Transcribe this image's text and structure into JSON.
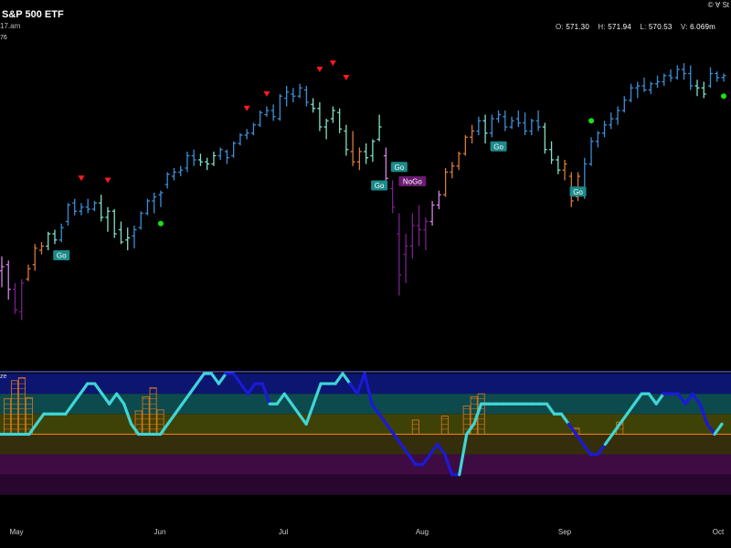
{
  "header": {
    "title": "S&P 500 ETF",
    "subtitle": "17.am",
    "copyright": "© Ɐ St",
    "price_label": "76",
    "oscillator_label": "ze",
    "ohlc": [
      {
        "key": "O:",
        "value": "571.30"
      },
      {
        "key": "H:",
        "value": "571.94"
      },
      {
        "key": "L:",
        "value": "570.53"
      },
      {
        "key": "V:",
        "value": "6.069m"
      }
    ]
  },
  "colors": {
    "background": "#000000",
    "strong_go": "#3a8fd8",
    "weak_go": "#82e0c8",
    "go_fish": "#d77a3c",
    "weak_nogo": "#d084e0",
    "strong_nogo": "#7a1f8c",
    "oscillator_line": "#3fd6d6",
    "oscillator_dark": "#1a1ad8",
    "zero_line": "#e07a1c",
    "divider": "#6a78ff"
  },
  "chart_data": [
    {
      "type": "ohlc",
      "title": "S&P 500 ETF",
      "x_ticks": [
        "May",
        "Jun",
        "Jul",
        "Aug",
        "Sep",
        "Oct"
      ],
      "ylim": [
        498,
        578
      ],
      "bars": [
        {
          "o": 521.0,
          "h": 524.5,
          "l": 517.0,
          "c": 522.0,
          "k": "wn"
        },
        {
          "o": 522.5,
          "h": 523.5,
          "l": 514.0,
          "c": 516.5,
          "k": "wn"
        },
        {
          "o": 516.5,
          "h": 518.0,
          "l": 510.5,
          "c": 511.5,
          "k": "sn"
        },
        {
          "o": 511.0,
          "h": 519.0,
          "l": 509.0,
          "c": 518.0,
          "k": "sn"
        },
        {
          "o": 519.0,
          "h": 522.5,
          "l": 518.5,
          "c": 521.5,
          "k": "gf"
        },
        {
          "o": 522.5,
          "h": 527.5,
          "l": 521.0,
          "c": 526.5,
          "k": "gf"
        },
        {
          "o": 526.0,
          "h": 528.0,
          "l": 525.0,
          "c": 527.0,
          "k": "gf"
        },
        {
          "o": 527.0,
          "h": 530.5,
          "l": 526.0,
          "c": 530.0,
          "k": "wg"
        },
        {
          "o": 530.0,
          "h": 531.0,
          "l": 527.5,
          "c": 528.5,
          "k": "wg"
        },
        {
          "o": 528.5,
          "h": 532.5,
          "l": 528.0,
          "c": 531.5,
          "k": "sg"
        },
        {
          "o": 533.0,
          "h": 537.5,
          "l": 532.0,
          "c": 537.0,
          "k": "sg"
        },
        {
          "o": 537.5,
          "h": 538.5,
          "l": 534.5,
          "c": 535.5,
          "k": "sg"
        },
        {
          "o": 535.5,
          "h": 537.5,
          "l": 534.5,
          "c": 536.5,
          "k": "sg"
        },
        {
          "o": 536.5,
          "h": 538.5,
          "l": 535.0,
          "c": 536.0,
          "k": "sg"
        },
        {
          "o": 536.0,
          "h": 538.0,
          "l": 535.5,
          "c": 537.5,
          "k": "sg"
        },
        {
          "o": 537.5,
          "h": 539.5,
          "l": 533.0,
          "c": 534.0,
          "k": "wg"
        },
        {
          "o": 534.0,
          "h": 536.5,
          "l": 530.5,
          "c": 535.5,
          "k": "wg"
        },
        {
          "o": 535.5,
          "h": 536.0,
          "l": 529.0,
          "c": 530.0,
          "k": "wg"
        },
        {
          "o": 531.0,
          "h": 533.0,
          "l": 527.5,
          "c": 528.0,
          "k": "wg"
        },
        {
          "o": 528.5,
          "h": 531.5,
          "l": 526.0,
          "c": 529.0,
          "k": "wg"
        },
        {
          "o": 529.5,
          "h": 532.0,
          "l": 526.5,
          "c": 531.0,
          "k": "sg"
        },
        {
          "o": 531.5,
          "h": 535.5,
          "l": 531.0,
          "c": 535.0,
          "k": "sg"
        },
        {
          "o": 535.0,
          "h": 538.5,
          "l": 534.5,
          "c": 538.0,
          "k": "sg"
        },
        {
          "o": 538.0,
          "h": 540.0,
          "l": 535.0,
          "c": 539.0,
          "k": "sg"
        },
        {
          "o": 539.5,
          "h": 540.5,
          "l": 536.5,
          "c": 540.0,
          "k": "sg"
        },
        {
          "o": 542.0,
          "h": 545.0,
          "l": 541.0,
          "c": 544.5,
          "k": "sg"
        },
        {
          "o": 544.0,
          "h": 546.0,
          "l": 543.0,
          "c": 545.0,
          "k": "sg"
        },
        {
          "o": 545.0,
          "h": 546.5,
          "l": 544.0,
          "c": 545.5,
          "k": "sg"
        },
        {
          "o": 546.0,
          "h": 550.0,
          "l": 545.0,
          "c": 549.0,
          "k": "sg"
        },
        {
          "o": 549.0,
          "h": 550.5,
          "l": 546.5,
          "c": 548.0,
          "k": "sg"
        },
        {
          "o": 548.0,
          "h": 549.5,
          "l": 546.5,
          "c": 547.5,
          "k": "wg"
        },
        {
          "o": 547.5,
          "h": 548.5,
          "l": 545.5,
          "c": 547.0,
          "k": "wg"
        },
        {
          "o": 547.0,
          "h": 550.0,
          "l": 546.5,
          "c": 549.0,
          "k": "wg"
        },
        {
          "o": 549.0,
          "h": 551.0,
          "l": 548.0,
          "c": 550.5,
          "k": "sg"
        },
        {
          "o": 550.0,
          "h": 550.5,
          "l": 547.0,
          "c": 548.5,
          "k": "sg"
        },
        {
          "o": 549.0,
          "h": 552.5,
          "l": 548.5,
          "c": 552.0,
          "k": "sg"
        },
        {
          "o": 552.0,
          "h": 554.5,
          "l": 551.5,
          "c": 554.0,
          "k": "sg"
        },
        {
          "o": 554.0,
          "h": 555.5,
          "l": 553.0,
          "c": 554.5,
          "k": "sg"
        },
        {
          "o": 554.5,
          "h": 557.0,
          "l": 554.0,
          "c": 556.5,
          "k": "sg"
        },
        {
          "o": 556.5,
          "h": 560.0,
          "l": 556.0,
          "c": 559.5,
          "k": "sg"
        },
        {
          "o": 559.0,
          "h": 561.0,
          "l": 558.5,
          "c": 560.0,
          "k": "sg"
        },
        {
          "o": 560.0,
          "h": 561.5,
          "l": 557.5,
          "c": 558.5,
          "k": "sg"
        },
        {
          "o": 558.0,
          "h": 564.0,
          "l": 557.5,
          "c": 563.5,
          "k": "sg"
        },
        {
          "o": 563.0,
          "h": 566.0,
          "l": 561.0,
          "c": 564.5,
          "k": "sg"
        },
        {
          "o": 564.0,
          "h": 565.5,
          "l": 562.0,
          "c": 563.5,
          "k": "sg"
        },
        {
          "o": 563.5,
          "h": 566.5,
          "l": 563.0,
          "c": 565.5,
          "k": "sg"
        },
        {
          "o": 565.0,
          "h": 566.0,
          "l": 561.0,
          "c": 562.0,
          "k": "sg"
        },
        {
          "o": 561.5,
          "h": 563.0,
          "l": 559.5,
          "c": 560.5,
          "k": "wg"
        },
        {
          "o": 560.5,
          "h": 562.0,
          "l": 555.0,
          "c": 556.0,
          "k": "wg"
        },
        {
          "o": 556.0,
          "h": 558.0,
          "l": 553.0,
          "c": 557.5,
          "k": "wg"
        },
        {
          "o": 558.0,
          "h": 561.0,
          "l": 557.0,
          "c": 560.0,
          "k": "wg"
        },
        {
          "o": 559.5,
          "h": 560.5,
          "l": 554.5,
          "c": 555.5,
          "k": "wg"
        },
        {
          "o": 555.0,
          "h": 556.5,
          "l": 549.0,
          "c": 550.5,
          "k": "wg"
        },
        {
          "o": 550.0,
          "h": 555.0,
          "l": 546.5,
          "c": 547.5,
          "k": "gf"
        },
        {
          "o": 547.5,
          "h": 551.0,
          "l": 545.5,
          "c": 550.0,
          "k": "gf"
        },
        {
          "o": 550.0,
          "h": 552.0,
          "l": 547.0,
          "c": 548.5,
          "k": "wg"
        },
        {
          "o": 549.0,
          "h": 553.0,
          "l": 547.5,
          "c": 552.5,
          "k": "wg"
        },
        {
          "o": 553.0,
          "h": 559.0,
          "l": 552.5,
          "c": 556.0,
          "k": "wg"
        },
        {
          "o": 549.0,
          "h": 551.0,
          "l": 542.0,
          "c": 543.5,
          "k": "wn"
        },
        {
          "o": 541.0,
          "h": 543.0,
          "l": 535.0,
          "c": 536.5,
          "k": "sn"
        },
        {
          "o": 530.0,
          "h": 535.0,
          "l": 515.0,
          "c": 520.0,
          "k": "sn"
        },
        {
          "o": 525.0,
          "h": 530.0,
          "l": 518.0,
          "c": 527.0,
          "k": "sn"
        },
        {
          "o": 527.0,
          "h": 535.0,
          "l": 524.0,
          "c": 532.0,
          "k": "sn"
        },
        {
          "o": 532.0,
          "h": 537.0,
          "l": 527.0,
          "c": 531.0,
          "k": "sn"
        },
        {
          "o": 531.0,
          "h": 534.0,
          "l": 526.0,
          "c": 533.0,
          "k": "sn"
        },
        {
          "o": 533.0,
          "h": 538.0,
          "l": 532.0,
          "c": 537.0,
          "k": "wn"
        },
        {
          "o": 537.0,
          "h": 540.5,
          "l": 536.0,
          "c": 539.5,
          "k": "wn"
        },
        {
          "o": 539.5,
          "h": 546.0,
          "l": 539.0,
          "c": 545.0,
          "k": "gf"
        },
        {
          "o": 545.0,
          "h": 547.5,
          "l": 543.5,
          "c": 546.5,
          "k": "gf"
        },
        {
          "o": 546.5,
          "h": 550.0,
          "l": 545.5,
          "c": 549.5,
          "k": "gf"
        },
        {
          "o": 549.5,
          "h": 554.0,
          "l": 549.0,
          "c": 553.5,
          "k": "gf"
        },
        {
          "o": 553.5,
          "h": 556.5,
          "l": 552.0,
          "c": 555.0,
          "k": "gf"
        },
        {
          "o": 555.0,
          "h": 558.5,
          "l": 554.0,
          "c": 557.5,
          "k": "sg"
        },
        {
          "o": 557.5,
          "h": 559.0,
          "l": 552.0,
          "c": 554.5,
          "k": "wg"
        },
        {
          "o": 554.5,
          "h": 559.0,
          "l": 553.5,
          "c": 558.0,
          "k": "sg"
        },
        {
          "o": 558.0,
          "h": 560.0,
          "l": 557.0,
          "c": 559.0,
          "k": "sg"
        },
        {
          "o": 558.5,
          "h": 560.0,
          "l": 555.0,
          "c": 556.0,
          "k": "sg"
        },
        {
          "o": 556.0,
          "h": 558.5,
          "l": 555.5,
          "c": 557.5,
          "k": "sg"
        },
        {
          "o": 558.0,
          "h": 560.0,
          "l": 556.0,
          "c": 557.0,
          "k": "sg"
        },
        {
          "o": 557.0,
          "h": 559.5,
          "l": 554.0,
          "c": 555.0,
          "k": "sg"
        },
        {
          "o": 555.0,
          "h": 558.0,
          "l": 554.0,
          "c": 557.5,
          "k": "sg"
        },
        {
          "o": 557.5,
          "h": 560.0,
          "l": 555.0,
          "c": 556.0,
          "k": "sg"
        },
        {
          "o": 556.0,
          "h": 557.0,
          "l": 549.5,
          "c": 550.5,
          "k": "wg"
        },
        {
          "o": 550.5,
          "h": 552.5,
          "l": 547.0,
          "c": 548.0,
          "k": "wg"
        },
        {
          "o": 548.0,
          "h": 549.0,
          "l": 544.5,
          "c": 545.5,
          "k": "wg"
        },
        {
          "o": 545.5,
          "h": 548.0,
          "l": 543.0,
          "c": 547.0,
          "k": "gf"
        },
        {
          "o": 544.0,
          "h": 545.0,
          "l": 536.5,
          "c": 538.0,
          "k": "gf"
        },
        {
          "o": 539.0,
          "h": 545.0,
          "l": 538.0,
          "c": 544.0,
          "k": "gf"
        },
        {
          "o": 541.0,
          "h": 548.5,
          "l": 538.5,
          "c": 547.0,
          "k": "sg"
        },
        {
          "o": 547.0,
          "h": 553.5,
          "l": 546.5,
          "c": 552.5,
          "k": "sg"
        },
        {
          "o": 552.5,
          "h": 555.0,
          "l": 551.0,
          "c": 554.5,
          "k": "sg"
        },
        {
          "o": 554.5,
          "h": 557.5,
          "l": 553.5,
          "c": 556.5,
          "k": "sg"
        },
        {
          "o": 556.5,
          "h": 559.5,
          "l": 555.5,
          "c": 558.0,
          "k": "sg"
        },
        {
          "o": 558.0,
          "h": 561.0,
          "l": 556.5,
          "c": 560.0,
          "k": "sg"
        },
        {
          "o": 560.0,
          "h": 563.5,
          "l": 559.5,
          "c": 562.5,
          "k": "sg"
        },
        {
          "o": 562.5,
          "h": 566.5,
          "l": 562.0,
          "c": 565.5,
          "k": "sg"
        },
        {
          "o": 565.5,
          "h": 567.0,
          "l": 563.0,
          "c": 566.0,
          "k": "sg"
        },
        {
          "o": 566.0,
          "h": 568.0,
          "l": 564.5,
          "c": 565.0,
          "k": "sg"
        },
        {
          "o": 565.0,
          "h": 567.0,
          "l": 564.0,
          "c": 566.5,
          "k": "sg"
        },
        {
          "o": 566.5,
          "h": 568.5,
          "l": 565.5,
          "c": 567.0,
          "k": "sg"
        },
        {
          "o": 567.0,
          "h": 569.0,
          "l": 566.0,
          "c": 568.5,
          "k": "sg"
        },
        {
          "o": 568.5,
          "h": 570.0,
          "l": 567.0,
          "c": 568.0,
          "k": "sg"
        },
        {
          "o": 568.0,
          "h": 571.0,
          "l": 567.5,
          "c": 570.0,
          "k": "sg"
        },
        {
          "o": 570.0,
          "h": 571.5,
          "l": 567.5,
          "c": 569.0,
          "k": "sg"
        },
        {
          "o": 569.0,
          "h": 571.0,
          "l": 565.0,
          "c": 566.0,
          "k": "sg"
        },
        {
          "o": 566.0,
          "h": 567.5,
          "l": 563.5,
          "c": 565.5,
          "k": "wg"
        },
        {
          "o": 565.5,
          "h": 567.0,
          "l": 563.0,
          "c": 564.0,
          "k": "wg"
        },
        {
          "o": 566.0,
          "h": 570.5,
          "l": 565.5,
          "c": 569.0,
          "k": "sg"
        },
        {
          "o": 569.0,
          "h": 569.5,
          "l": 567.0,
          "c": 568.0,
          "k": "sg"
        },
        {
          "o": 568.0,
          "h": 569.0,
          "l": 567.0,
          "c": 568.5,
          "k": "sg"
        }
      ],
      "markers": [
        {
          "type": "triangle-down",
          "bar": 12,
          "price": 543.5
        },
        {
          "type": "triangle-down",
          "bar": 16,
          "price": 543.0
        },
        {
          "type": "dot",
          "bar": 24,
          "price": 532.5
        },
        {
          "type": "triangle-down",
          "bar": 37,
          "price": 560.5
        },
        {
          "type": "triangle-down",
          "bar": 40,
          "price": 564.0
        },
        {
          "type": "triangle-down",
          "bar": 48,
          "price": 570.0
        },
        {
          "type": "triangle-down",
          "bar": 50,
          "price": 571.5
        },
        {
          "type": "triangle-down",
          "bar": 52,
          "price": 568.0
        },
        {
          "type": "dot",
          "bar": 89,
          "price": 557.5
        },
        {
          "type": "dot",
          "bar": 109,
          "price": 563.5
        }
      ],
      "labels": [
        {
          "text": "Go",
          "bar": 9,
          "price": 526.0,
          "kind": "go"
        },
        {
          "text": "Go",
          "bar": 57,
          "price": 543.0,
          "kind": "go"
        },
        {
          "text": "Go",
          "bar": 60,
          "price": 547.5,
          "kind": "go"
        },
        {
          "text": "NoGo",
          "bar": 62,
          "price": 544.0,
          "kind": "nogo"
        },
        {
          "text": "Go",
          "bar": 75,
          "price": 552.5,
          "kind": "go"
        },
        {
          "text": "Go",
          "bar": 87,
          "price": 541.5,
          "kind": "go"
        }
      ]
    },
    {
      "type": "line",
      "title": "",
      "ylim": [
        -8,
        6
      ],
      "zero": 0,
      "bands": [
        {
          "from": 4,
          "to": 6,
          "color": "#0c1570"
        },
        {
          "from": 2,
          "to": 4,
          "color": "#0d4a4e"
        },
        {
          "from": 0,
          "to": 2,
          "color": "#3f4207"
        },
        {
          "from": -2,
          "to": 0,
          "color": "#352e0c"
        },
        {
          "from": -4,
          "to": -2,
          "color": "#3e0b43"
        },
        {
          "from": -6,
          "to": -4,
          "color": "#28072e"
        },
        {
          "from": -8,
          "to": -6,
          "color": "#000000"
        }
      ],
      "values": [
        0,
        0,
        0,
        0,
        0,
        1,
        2,
        2,
        2,
        2,
        3,
        4,
        5,
        5,
        4,
        3,
        4,
        3,
        1,
        0,
        0,
        0,
        0,
        1,
        2,
        3,
        4,
        5,
        6,
        6,
        5,
        6,
        6,
        5,
        4,
        5,
        5,
        3,
        3,
        4,
        3,
        2,
        1,
        3,
        5,
        5,
        5,
        6,
        5,
        4,
        6,
        3,
        2,
        1,
        0,
        -1,
        -2,
        -3,
        -3,
        -2,
        -1,
        -2,
        -4,
        -4,
        0,
        1,
        3,
        3,
        3,
        3,
        3,
        3,
        3,
        3,
        3,
        3,
        2,
        2,
        1,
        0,
        -1,
        -2,
        -2,
        -1,
        0,
        1,
        2,
        3,
        4,
        4,
        3,
        4,
        4,
        4,
        3,
        4,
        3,
        1,
        0,
        1
      ],
      "dark_ranges": [
        [
          31,
          37
        ],
        [
          48,
          63
        ],
        [
          78,
          83
        ],
        [
          91,
          98
        ]
      ],
      "bars": [
        {
          "i": 1,
          "h": 3.5
        },
        {
          "i": 2,
          "h": 5.3
        },
        {
          "i": 3,
          "h": 5.6
        },
        {
          "i": 4,
          "h": 3.6
        },
        {
          "i": 19,
          "h": 2.3
        },
        {
          "i": 20,
          "h": 3.7
        },
        {
          "i": 21,
          "h": 4.6
        },
        {
          "i": 22,
          "h": 2.4
        },
        {
          "i": 57,
          "h": 1.4
        },
        {
          "i": 61,
          "h": 1.8
        },
        {
          "i": 64,
          "h": 2.8
        },
        {
          "i": 65,
          "h": 3.7
        },
        {
          "i": 66,
          "h": 4.0
        },
        {
          "i": 79,
          "h": 0.6
        },
        {
          "i": 85,
          "h": 1.2
        }
      ]
    }
  ]
}
